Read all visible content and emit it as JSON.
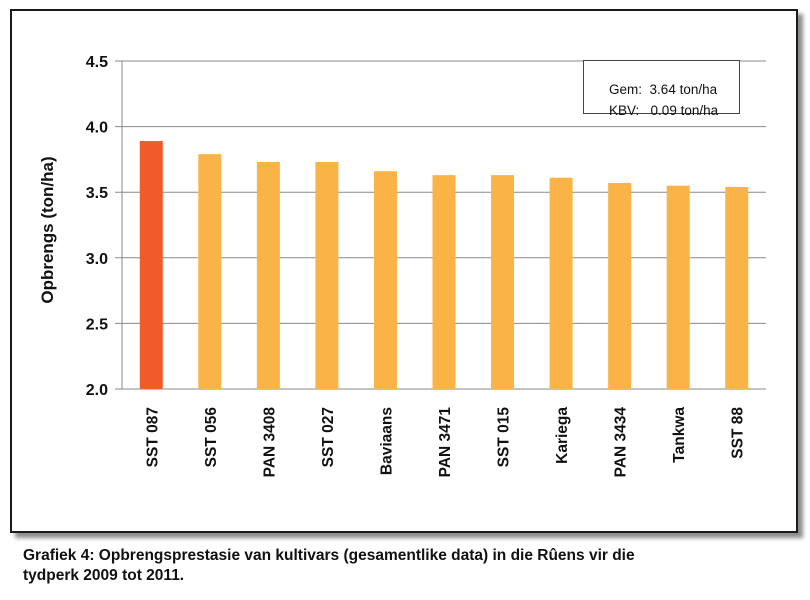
{
  "chart_data": {
    "type": "bar",
    "categories": [
      "SST 087",
      "SST 056",
      "PAN 3408",
      "SST 027",
      "Baviaans",
      "PAN 3471",
      "SST 015",
      "Kariega",
      "PAN 3434",
      "Tankwa",
      "SST 88"
    ],
    "values": [
      3.89,
      3.79,
      3.73,
      3.73,
      3.66,
      3.63,
      3.63,
      3.61,
      3.57,
      3.55,
      3.54
    ],
    "title": "",
    "xlabel": "",
    "ylabel": "Opbrengs (ton/ha)",
    "ylim": [
      2.0,
      4.5
    ],
    "yticks": [
      "2.0",
      "2.5",
      "3.0",
      "3.5",
      "4.0",
      "4.5"
    ],
    "grid": true,
    "colors": {
      "highlight": "#f15a2b",
      "bar": "#f9b347"
    },
    "annotation": {
      "mean_label": "Gem:",
      "mean_value": "3.64 ton/ha",
      "cv_label": "KBV:",
      "cv_value": "0.09 ton/ha"
    }
  },
  "caption": {
    "line1": "Grafiek 4: Opbrengsprestasie van kultivars (gesamentlike data) in die Rûens vir die",
    "line2": "tydperk 2009 tot 2011."
  }
}
